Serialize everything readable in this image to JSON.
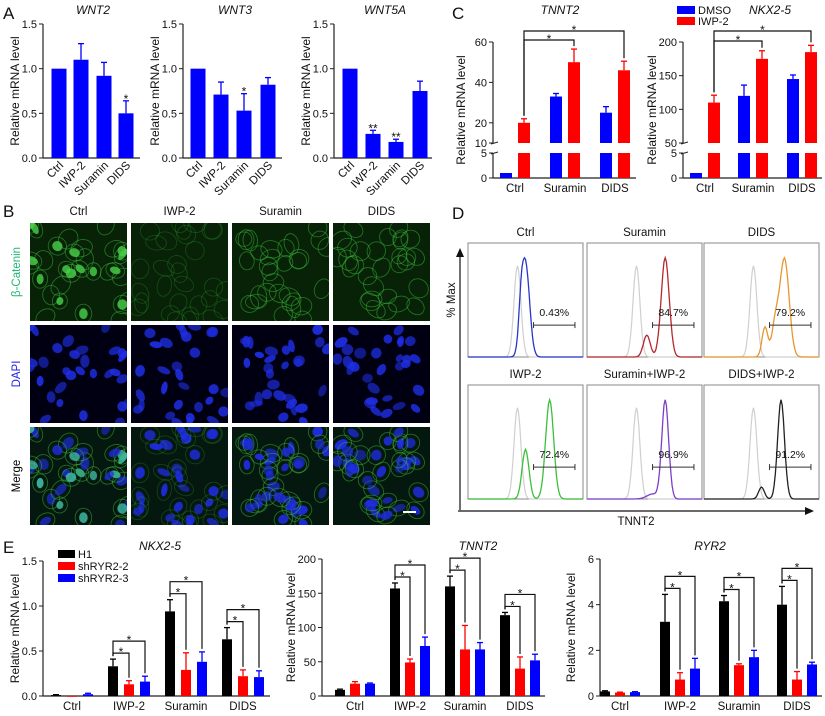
{
  "panel_labels": {
    "a": "A",
    "b": "B",
    "c": "C",
    "d": "D",
    "e": "E"
  },
  "chart_data": [
    {
      "panel": "A",
      "type": "bar",
      "title": "WNT2",
      "ylabel": "Relative mRNA level",
      "categories": [
        "Ctrl",
        "IWP-2",
        "Suramin",
        "DIDS"
      ],
      "ylim": [
        0,
        1.5
      ],
      "yticks": [
        "0.0",
        "0.5",
        "1.0",
        "1.5"
      ],
      "series": [
        {
          "color": "#0000ff",
          "values": [
            1.0,
            1.1,
            0.92,
            0.5
          ],
          "errors": [
            0,
            0.18,
            0.15,
            0.14
          ]
        }
      ],
      "significance": [
        "",
        "",
        "",
        "*"
      ]
    },
    {
      "panel": "A",
      "type": "bar",
      "title": "WNT3",
      "ylabel": "Relative mRNA level",
      "categories": [
        "Ctrl",
        "IWP-2",
        "Suramin",
        "DIDS"
      ],
      "ylim": [
        0,
        1.5
      ],
      "yticks": [
        "0.0",
        "0.5",
        "1.0",
        "1.5"
      ],
      "series": [
        {
          "color": "#0000ff",
          "values": [
            1.0,
            0.71,
            0.53,
            0.82
          ],
          "errors": [
            0,
            0.14,
            0.19,
            0.08
          ]
        }
      ],
      "significance": [
        "",
        "",
        "*",
        ""
      ]
    },
    {
      "panel": "A",
      "type": "bar",
      "title": "WNT5A",
      "ylabel": "Relative mRNA level",
      "categories": [
        "Ctrl",
        "IWP-2",
        "Suramin",
        "DIDS"
      ],
      "ylim": [
        0,
        1.5
      ],
      "yticks": [
        "0.0",
        "0.5",
        "1.0",
        "1.5"
      ],
      "series": [
        {
          "color": "#0000ff",
          "values": [
            1.0,
            0.27,
            0.18,
            0.75
          ],
          "errors": [
            0,
            0.04,
            0.03,
            0.11
          ]
        }
      ],
      "significance": [
        "",
        "**",
        "**",
        ""
      ]
    },
    {
      "panel": "C",
      "type": "bar",
      "title": "TNNT2",
      "ylabel": "Relative mRNA level",
      "categories": [
        "Ctrl",
        "Suramin",
        "DIDS"
      ],
      "ylim": [
        0,
        60
      ],
      "axis_break": [
        5,
        10
      ],
      "yticks": [
        "0",
        "5",
        "10",
        "20",
        "40",
        "60"
      ],
      "legend": "top",
      "series": [
        {
          "name": "DMSO",
          "color": "#0000ff",
          "values": [
            1,
            33,
            25
          ],
          "errors": [
            0,
            1.5,
            3
          ]
        },
        {
          "name": "IWP-2",
          "color": "#ff0000",
          "values": [
            20,
            50,
            46
          ],
          "errors": [
            2,
            6.5,
            4.5
          ]
        }
      ],
      "comparisons": [
        {
          "from": [
            "Ctrl",
            "IWP-2"
          ],
          "to": [
            "Suramin",
            "IWP-2"
          ],
          "label": "*"
        },
        {
          "from": [
            "Ctrl",
            "IWP-2"
          ],
          "to": [
            "DIDS",
            "IWP-2"
          ],
          "label": "*"
        }
      ]
    },
    {
      "panel": "C",
      "type": "bar",
      "title": "NKX2-5",
      "ylabel": "Relative mRNA level",
      "categories": [
        "Ctrl",
        "Suramin",
        "DIDS"
      ],
      "ylim": [
        0,
        200
      ],
      "axis_break": [
        5,
        50
      ],
      "yticks": [
        "0",
        "5",
        "50",
        "100",
        "150",
        "200"
      ],
      "series": [
        {
          "name": "DMSO",
          "color": "#0000ff",
          "values": [
            1,
            120,
            145
          ],
          "errors": [
            0,
            16,
            6
          ]
        },
        {
          "name": "IWP-2",
          "color": "#ff0000",
          "values": [
            110,
            175,
            185
          ],
          "errors": [
            11,
            12,
            10
          ]
        }
      ],
      "comparisons": [
        {
          "from": [
            "Ctrl",
            "IWP-2"
          ],
          "to": [
            "Suramin",
            "IWP-2"
          ],
          "label": "*"
        },
        {
          "from": [
            "Ctrl",
            "IWP-2"
          ],
          "to": [
            "DIDS",
            "IWP-2"
          ],
          "label": "*"
        }
      ]
    },
    {
      "panel": "E",
      "type": "bar",
      "title": "NKX2-5",
      "ylabel": "Relative mRNA level",
      "categories": [
        "Ctrl",
        "IWP-2",
        "Suramin",
        "DIDS"
      ],
      "ylim": [
        0,
        1.5
      ],
      "yticks": [
        "0.0",
        "0.5",
        "1.0",
        "1.5"
      ],
      "legend": "top-left",
      "series": [
        {
          "name": "H1",
          "color": "#000000",
          "values": [
            0.01,
            0.33,
            0.94,
            0.63
          ],
          "errors": [
            0.005,
            0.08,
            0.13,
            0.13
          ]
        },
        {
          "name": "shRYR2-2",
          "color": "#ff0000",
          "values": [
            0.0,
            0.13,
            0.29,
            0.22
          ],
          "errors": [
            0,
            0.04,
            0.19,
            0.07
          ]
        },
        {
          "name": "shRYR2-3",
          "color": "#0000ff",
          "values": [
            0.02,
            0.16,
            0.38,
            0.21
          ],
          "errors": [
            0.01,
            0.06,
            0.11,
            0.07
          ]
        }
      ],
      "comparisons": [
        {
          "category": "IWP-2",
          "from": "H1",
          "to": "shRYR2-2",
          "label": "*"
        },
        {
          "category": "IWP-2",
          "from": "H1",
          "to": "shRYR2-3",
          "label": "*"
        },
        {
          "category": "Suramin",
          "from": "H1",
          "to": "shRYR2-2",
          "label": "*"
        },
        {
          "category": "Suramin",
          "from": "H1",
          "to": "shRYR2-3",
          "label": "*"
        },
        {
          "category": "DIDS",
          "from": "H1",
          "to": "shRYR2-2",
          "label": "*"
        },
        {
          "category": "DIDS",
          "from": "H1",
          "to": "shRYR2-3",
          "label": "*"
        }
      ]
    },
    {
      "panel": "E",
      "type": "bar",
      "title": "TNNT2",
      "ylabel": "Relative mRNA level",
      "categories": [
        "Ctrl",
        "IWP-2",
        "Suramin",
        "DIDS"
      ],
      "ylim": [
        0,
        200
      ],
      "yticks": [
        "0",
        "50",
        "100",
        "150",
        "200"
      ],
      "series": [
        {
          "name": "H1",
          "color": "#000000",
          "values": [
            9,
            157,
            160,
            118
          ],
          "errors": [
            1,
            8,
            15,
            4
          ]
        },
        {
          "name": "shRYR2-2",
          "color": "#ff0000",
          "values": [
            18,
            49,
            68,
            40
          ],
          "errors": [
            3,
            5,
            35,
            17
          ]
        },
        {
          "name": "shRYR2-3",
          "color": "#0000ff",
          "values": [
            18,
            73,
            68,
            52
          ],
          "errors": [
            1,
            13,
            10,
            9
          ]
        }
      ],
      "comparisons": [
        {
          "category": "IWP-2",
          "from": "H1",
          "to": "shRYR2-2",
          "label": "*"
        },
        {
          "category": "IWP-2",
          "from": "H1",
          "to": "shRYR2-3",
          "label": "*"
        },
        {
          "category": "Suramin",
          "from": "H1",
          "to": "shRYR2-2",
          "label": "*"
        },
        {
          "category": "Suramin",
          "from": "H1",
          "to": "shRYR2-3",
          "label": "*"
        },
        {
          "category": "DIDS",
          "from": "H1",
          "to": "shRYR2-2",
          "label": "*"
        },
        {
          "category": "DIDS",
          "from": "H1",
          "to": "shRYR2-3",
          "label": "*"
        }
      ]
    },
    {
      "panel": "E",
      "type": "bar",
      "title": "RYR2",
      "ylabel": "Relative mRNA level",
      "categories": [
        "Ctrl",
        "IWP-2",
        "Suramin",
        "DIDS"
      ],
      "ylim": [
        0,
        6
      ],
      "yticks": [
        "0",
        "2",
        "4",
        "6"
      ],
      "series": [
        {
          "name": "H1",
          "color": "#000000",
          "values": [
            0.2,
            3.25,
            4.15,
            4.0
          ],
          "errors": [
            0.03,
            1.2,
            0.25,
            0.8
          ]
        },
        {
          "name": "shRYR2-2",
          "color": "#ff0000",
          "values": [
            0.15,
            0.72,
            1.35,
            0.72
          ],
          "errors": [
            0.02,
            0.3,
            0.06,
            0.35
          ]
        },
        {
          "name": "shRYR2-3",
          "color": "#0000ff",
          "values": [
            0.17,
            1.2,
            1.7,
            1.38
          ],
          "errors": [
            0.02,
            0.45,
            0.3,
            0.1
          ]
        }
      ],
      "comparisons": [
        {
          "category": "IWP-2",
          "from": "H1",
          "to": "shRYR2-2",
          "label": "*"
        },
        {
          "category": "IWP-2",
          "from": "H1",
          "to": "shRYR2-3",
          "label": "*"
        },
        {
          "category": "Suramin",
          "from": "H1",
          "to": "shRYR2-2",
          "label": "*"
        },
        {
          "category": "Suramin",
          "from": "H1",
          "to": "shRYR2-3",
          "label": "*"
        },
        {
          "category": "DIDS",
          "from": "H1",
          "to": "shRYR2-2",
          "label": "*"
        },
        {
          "category": "DIDS",
          "from": "H1",
          "to": "shRYR2-3",
          "label": "*"
        }
      ]
    }
  ],
  "microscopy": {
    "columns": [
      "Ctrl",
      "IWP-2",
      "Suramin",
      "DIDS"
    ],
    "rows": [
      {
        "label": "β-Catenin",
        "color": "#22b573"
      },
      {
        "label": "DAPI",
        "color": "#1f1fe6"
      },
      {
        "label": "Merge",
        "color": "#000000"
      }
    ]
  },
  "flow": {
    "ylabel": "% Max",
    "xlabel": "TNNT2",
    "panels": [
      {
        "title": "Ctrl",
        "percent": "0.43%",
        "color": "#2a36c8"
      },
      {
        "title": "Suramin",
        "percent": "84.7%",
        "color": "#b5282d"
      },
      {
        "title": "DIDS",
        "percent": "79.2%",
        "color": "#e8962e"
      },
      {
        "title": "IWP-2",
        "percent": "72.4%",
        "color": "#3cbf3c"
      },
      {
        "title": "Suramin+IWP-2",
        "percent": "96.9%",
        "color": "#7b3fc8"
      },
      {
        "title": "DIDS+IWP-2",
        "percent": "91.2%",
        "color": "#222222"
      }
    ]
  }
}
